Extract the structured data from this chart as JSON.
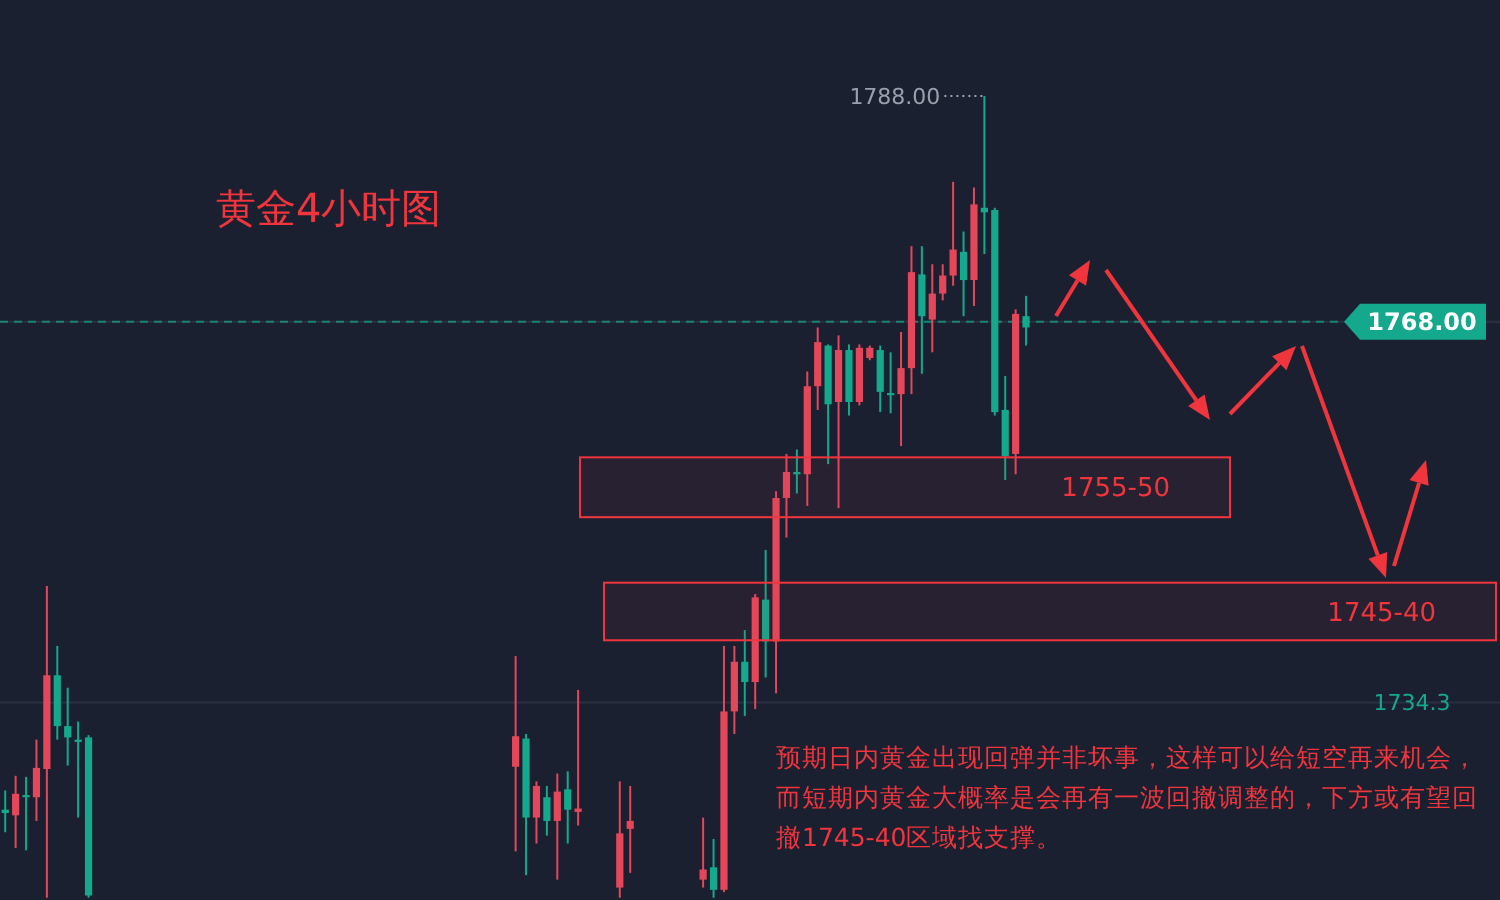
{
  "chart_data": {
    "type": "candlestick",
    "title": "黄金4小时图",
    "categories": [
      null,
      null,
      null,
      null,
      null,
      null,
      null,
      null,
      null,
      null,
      null,
      null,
      null,
      null,
      null,
      null,
      null,
      null,
      null,
      null,
      null,
      null,
      null,
      null,
      null,
      null,
      null,
      null,
      null,
      null,
      null,
      null,
      null,
      null,
      null,
      null,
      null,
      null,
      null,
      null,
      null,
      null,
      null,
      null,
      null,
      null,
      null,
      null,
      null,
      null,
      null,
      null,
      null,
      null,
      null,
      null,
      null,
      null,
      null,
      null,
      null,
      null,
      null,
      null,
      null,
      null,
      null,
      null,
      null,
      null,
      null,
      null,
      null,
      null,
      null,
      null,
      null,
      null,
      null,
      null,
      null,
      null,
      null,
      null,
      null,
      null,
      null,
      null,
      null,
      null,
      null,
      null,
      null,
      null,
      null,
      null,
      null,
      null,
      null,
      null,
      null,
      null,
      null,
      null,
      null,
      null,
      null,
      null,
      null,
      null,
      null,
      null,
      null,
      null,
      null,
      null,
      null,
      null,
      null,
      null,
      null,
      null,
      null,
      null,
      null,
      null,
      null,
      null,
      null,
      null,
      null,
      null,
      null,
      null,
      null,
      null,
      null,
      null,
      null,
      null,
      null,
      null,
      null,
      null
    ],
    "ohlc": [
      [
        1724.8,
        1726.5,
        1722.8,
        1724.5
      ],
      [
        1724.3,
        1727.8,
        1721.4,
        1726.2
      ],
      [
        1726.1,
        1727.7,
        1721.2,
        1725.9
      ],
      [
        1725.9,
        1731.0,
        1723.8,
        1728.5
      ],
      [
        1728.4,
        1744.6,
        1717.0,
        1736.7
      ],
      [
        1736.7,
        1739.3,
        1731.0,
        1732.2
      ],
      [
        1732.2,
        1735.6,
        1728.7,
        1731.2
      ],
      [
        1731.0,
        1732.6,
        1724.1,
        1730.8
      ],
      [
        1731.2,
        1731.4,
        1717.0,
        1717.2
      ],
      null,
      null,
      null,
      null,
      null,
      null,
      null,
      null,
      null,
      null,
      null,
      null,
      null,
      null,
      null,
      null,
      null,
      null,
      null,
      null,
      null,
      null,
      null,
      null,
      null,
      null,
      null,
      null,
      null,
      null,
      null,
      null,
      null,
      null,
      null,
      null,
      null,
      null,
      null,
      null,
      [
        1728.6,
        1738.4,
        1721.1,
        1731.3
      ],
      [
        1731.1,
        1731.5,
        1719.0,
        1724.1
      ],
      [
        1724.1,
        1727.3,
        1721.8,
        1726.9
      ],
      [
        1725.9,
        1726.9,
        1722.5,
        1723.8
      ],
      [
        1723.8,
        1728.0,
        1718.6,
        1726.4
      ],
      [
        1726.6,
        1728.2,
        1721.8,
        1724.8
      ],
      [
        1724.6,
        1735.4,
        1723.4,
        1724.9
      ],
      null,
      null,
      null,
      [
        1717.9,
        1727.3,
        1717.0,
        1722.7
      ],
      [
        1723.1,
        1726.9,
        1719.2,
        1723.8
      ],
      null,
      null,
      null,
      null,
      null,
      null,
      [
        1718.6,
        1724.1,
        1717.9,
        1719.5
      ],
      [
        1719.7,
        1722.2,
        1717.0,
        1717.7
      ],
      [
        1717.7,
        1739.3,
        1717.5,
        1733.5
      ],
      [
        1733.5,
        1739.3,
        1731.5,
        1737.9
      ],
      [
        1737.9,
        1740.7,
        1733.1,
        1736.1
      ],
      [
        1736.1,
        1743.9,
        1733.7,
        1743.6
      ],
      [
        1743.4,
        1747.8,
        1736.5,
        1739.7
      ],
      [
        1739.7,
        1753.0,
        1735.1,
        1752.4
      ],
      [
        1752.4,
        1756.3,
        1748.9,
        1754.7
      ],
      [
        1754.7,
        1756.7,
        1752.8,
        1754.5
      ],
      [
        1754.5,
        1763.6,
        1751.7,
        1762.3
      ],
      [
        1762.3,
        1767.5,
        1760.2,
        1766.2
      ],
      [
        1765.9,
        1766.0,
        1755.4,
        1760.7
      ],
      [
        1760.9,
        1766.8,
        1751.5,
        1765.5
      ],
      [
        1765.5,
        1766.0,
        1759.7,
        1760.9
      ],
      [
        1760.9,
        1766.0,
        1760.6,
        1765.7
      ],
      [
        1764.8,
        1765.9,
        1764.6,
        1765.7
      ],
      [
        1765.5,
        1765.9,
        1760.0,
        1761.8
      ],
      [
        1761.7,
        1765.3,
        1759.9,
        1761.5
      ],
      [
        1761.6,
        1767.1,
        1757.0,
        1763.9
      ],
      [
        1763.9,
        1774.7,
        1761.6,
        1772.4
      ],
      [
        1772.2,
        1774.7,
        1763.4,
        1768.5
      ],
      [
        1768.2,
        1773.1,
        1765.3,
        1770.5
      ],
      [
        1770.5,
        1773.1,
        1769.9,
        1772.1
      ],
      [
        1772.1,
        1780.4,
        1771.2,
        1774.4
      ],
      [
        1774.2,
        1776.0,
        1768.5,
        1771.7
      ],
      [
        1771.7,
        1779.9,
        1769.4,
        1778.4
      ],
      [
        1778.1,
        1788.0,
        1774.0,
        1777.7
      ],
      [
        1777.9,
        1778.1,
        1759.7,
        1760.0
      ],
      [
        1760.2,
        1763.2,
        1754.0,
        1756.1
      ],
      [
        1756.3,
        1769.1,
        1754.5,
        1768.7
      ],
      [
        1768.5,
        1770.3,
        1765.9,
        1767.5
      ],
      null,
      null,
      null,
      null,
      null,
      null,
      null,
      null,
      null,
      null,
      null,
      null,
      null,
      null,
      null,
      null,
      null,
      null,
      null,
      null,
      null,
      null,
      null,
      null,
      null,
      null,
      null,
      null,
      null,
      null,
      null,
      null,
      null,
      null,
      null,
      null,
      null,
      null,
      null,
      null,
      null,
      null,
      null,
      null,
      null
    ],
    "colors": [
      "#14a88c",
      "#e4475a",
      "#14a88c",
      "#e4475a",
      "#e4475a",
      "#14a88c",
      "#14a88c",
      "#14a88c",
      "#14a88c",
      null,
      null,
      null,
      null,
      null,
      null,
      null,
      null,
      null,
      null,
      null,
      null,
      null,
      null,
      null,
      null,
      null,
      null,
      null,
      null,
      null,
      null,
      null,
      null,
      null,
      null,
      null,
      null,
      null,
      null,
      null,
      null,
      null,
      null,
      null,
      null,
      null,
      null,
      null,
      null,
      "#e4475a",
      "#14a88c",
      "#e4475a",
      "#14a88c",
      "#e4475a",
      "#14a88c",
      "#e4475a",
      null,
      null,
      null,
      "#e4475a",
      "#e4475a",
      null,
      null,
      null,
      null,
      null,
      null,
      "#e4475a",
      "#14a88c",
      "#e4475a",
      "#e4475a",
      "#14a88c",
      "#e4475a",
      "#14a88c",
      "#e4475a",
      "#e4475a",
      "#14a88c",
      "#e4475a",
      "#e4475a",
      "#14a88c",
      "#e4475a",
      "#14a88c",
      "#e4475a",
      "#e4475a",
      "#14a88c",
      "#14a88c",
      "#e4475a",
      "#e4475a",
      "#14a88c",
      "#e4475a",
      "#e4475a",
      "#e4475a",
      "#14a88c",
      "#e4475a",
      "#14a88c",
      "#14a88c",
      "#14a88c",
      "#e4475a",
      "#14a88c",
      null,
      null,
      null,
      null,
      null,
      null,
      null,
      null,
      null,
      null,
      null,
      null,
      null,
      null,
      null,
      null,
      null,
      null,
      null,
      null,
      null,
      null,
      null,
      null,
      null,
      null,
      null,
      null,
      null,
      null,
      null,
      null,
      null,
      null,
      null,
      null,
      null,
      null,
      null,
      null,
      null,
      null,
      null,
      null,
      null
    ],
    "ylim": [
      1716.8,
      1796.5
    ],
    "yticks": [
      {
        "value": 1768,
        "label": "1768.00"
      },
      {
        "value": 1734.3,
        "label": "1734.3"
      }
    ],
    "grid": "y",
    "ref_lines": [
      {
        "axis": "y",
        "value": 1768,
        "color": "#14a88c",
        "line_style": "dashed"
      }
    ],
    "bands": [
      {
        "axis": "y",
        "from": 1750.7,
        "to": 1756,
        "label": "1755-50",
        "color": "#f0353d"
      },
      {
        "axis": "y",
        "from": 1739.8,
        "to": 1744.9,
        "label": "1745-40",
        "color": "#f0353d"
      }
    ],
    "annotations": [
      "1788.00",
      "预期日内黄金出现回弹并非坏事，这样可以给短空再来机会，",
      "而短期内黄金大概率是会再有一波回撤调整的，下方或有望回",
      "撤1745-40区域找支撑。"
    ]
  }
}
